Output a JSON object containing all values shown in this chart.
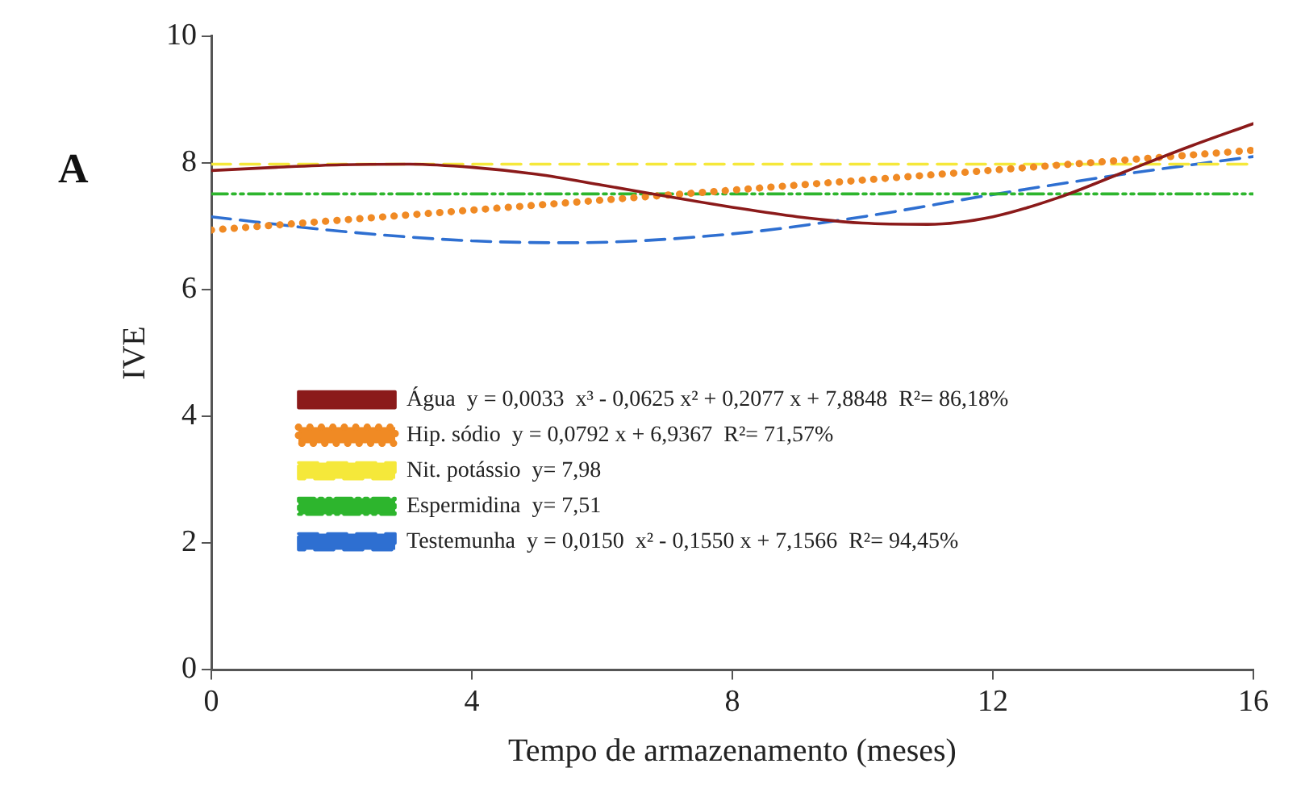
{
  "chart_data": {
    "type": "line",
    "xlabel": "Tempo de armazenamento (meses)",
    "ylabel": "IVE",
    "annotations": [
      "A"
    ],
    "xlim": [
      0,
      16
    ],
    "xticks": [
      0,
      4,
      8,
      12,
      16
    ],
    "ylim": [
      0,
      10
    ],
    "yticks": [
      0,
      2,
      4,
      6,
      8,
      10
    ],
    "grid": false,
    "legend": "bottom left",
    "marker": "none",
    "series": [
      {
        "name": "Água  y = 0,0033  x³ - 0,0625 x² + 0,2077 x + 7,8848  R²= 86,18%",
        "color": "#8b1a1a",
        "line_style": "solid",
        "x": [
          0,
          1,
          2,
          3,
          4,
          5,
          6,
          7,
          8,
          9,
          10,
          11,
          12,
          13,
          14,
          15,
          16
        ],
        "values": [
          7.88,
          7.93,
          7.97,
          7.98,
          7.93,
          7.82,
          7.65,
          7.47,
          7.3,
          7.15,
          7.05,
          7.03,
          7.15,
          7.45,
          7.85,
          8.25,
          8.62
        ]
      },
      {
        "name": "Hip. sódio  y = 0,0792 x + 6,9367  R²= 71,57%",
        "color": "#f08a24",
        "line_style": "dotted",
        "x": [
          0,
          16
        ],
        "values": [
          6.94,
          8.2
        ]
      },
      {
        "name": "Nit. potássio  y= 7,98",
        "color": "#f5e83a",
        "line_style": "dashed",
        "x": [
          0,
          16
        ],
        "values": [
          7.98,
          7.98
        ]
      },
      {
        "name": "Espermidina  y= 7,51",
        "color": "#2db52d",
        "line_style": "dashed",
        "x": [
          0,
          16
        ],
        "values": [
          7.51,
          7.51
        ]
      },
      {
        "name": "Testemunha  y = 0,0150  x² - 0,1550 x + 7,1566  R²= 94,45%",
        "color": "#2e6fd1",
        "line_style": "dashed",
        "x": [
          0,
          2,
          4,
          5.5,
          8,
          10,
          12,
          14,
          16
        ],
        "values": [
          7.15,
          6.92,
          6.77,
          6.74,
          6.88,
          7.15,
          7.5,
          7.82,
          8.1
        ]
      }
    ]
  }
}
